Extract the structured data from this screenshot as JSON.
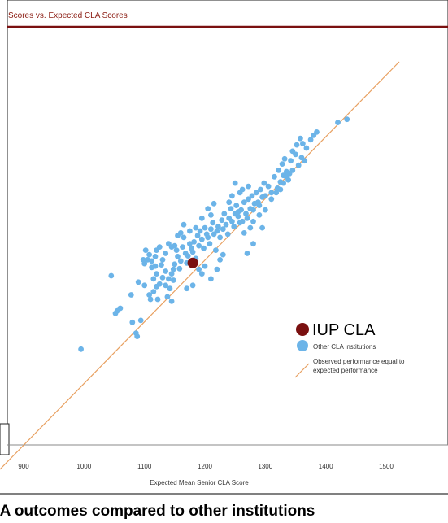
{
  "header": {
    "title": "Scores vs. Expected CLA Scores"
  },
  "chart_data": {
    "type": "scatter",
    "title": "Scores vs. Expected CLA Scores",
    "xlabel": "Expected Mean Senior CLA Score",
    "ylabel": "",
    "xlim": [
      900,
      1500
    ],
    "ylim": [
      900,
      1500
    ],
    "x_ticks": [
      "900",
      "1000",
      "1100",
      "1200",
      "1300",
      "1400",
      "1500"
    ],
    "grid": false,
    "legend_position": "bottom-right",
    "legend": {
      "highlight": "IUP CLA",
      "others": "Other CLA institutions",
      "line": "Observed performance equal to expected performance"
    },
    "colors": {
      "highlight": "#7a1010",
      "others": "#6cb4e8",
      "line": "#e8a060",
      "header_rule": "#7a1010"
    },
    "highlight_point": {
      "x": 1180,
      "y": 1185
    },
    "diagonal": {
      "from": [
        900,
        900
      ],
      "to": [
        1500,
        1500
      ]
    },
    "series": [
      {
        "name": "Other CLA institutions",
        "points": [
          [
            995,
            1050
          ],
          [
            1045,
            1165
          ],
          [
            1052,
            1106
          ],
          [
            1060,
            1114
          ],
          [
            1055,
            1110
          ],
          [
            1078,
            1135
          ],
          [
            1080,
            1092
          ],
          [
            1088,
            1070
          ],
          [
            1086,
            1075
          ],
          [
            1094,
            1095
          ],
          [
            1090,
            1155
          ],
          [
            1100,
            1184
          ],
          [
            1100,
            1150
          ],
          [
            1105,
            1190
          ],
          [
            1108,
            1135
          ],
          [
            1112,
            1178
          ],
          [
            1118,
            1180
          ],
          [
            1120,
            1148
          ],
          [
            1125,
            1152
          ],
          [
            1128,
            1182
          ],
          [
            1135,
            1172
          ],
          [
            1140,
            1160
          ],
          [
            1145,
            1168
          ],
          [
            1148,
            1175
          ],
          [
            1150,
            1183
          ],
          [
            1153,
            1205
          ],
          [
            1155,
            1195
          ],
          [
            1158,
            1176
          ],
          [
            1160,
            1188
          ],
          [
            1163,
            1210
          ],
          [
            1165,
            1225
          ],
          [
            1168,
            1200
          ],
          [
            1170,
            1185
          ],
          [
            1172,
            1196
          ],
          [
            1175,
            1215
          ],
          [
            1178,
            1208
          ],
          [
            1180,
            1202
          ],
          [
            1182,
            1218
          ],
          [
            1185,
            1192
          ],
          [
            1188,
            1228
          ],
          [
            1190,
            1212
          ],
          [
            1192,
            1235
          ],
          [
            1195,
            1222
          ],
          [
            1198,
            1208
          ],
          [
            1200,
            1240
          ],
          [
            1203,
            1230
          ],
          [
            1205,
            1225
          ],
          [
            1208,
            1215
          ],
          [
            1210,
            1238
          ],
          [
            1213,
            1248
          ],
          [
            1215,
            1230
          ],
          [
            1218,
            1205
          ],
          [
            1220,
            1235
          ],
          [
            1222,
            1242
          ],
          [
            1225,
            1225
          ],
          [
            1228,
            1252
          ],
          [
            1230,
            1238
          ],
          [
            1232,
            1262
          ],
          [
            1235,
            1245
          ],
          [
            1238,
            1230
          ],
          [
            1240,
            1255
          ],
          [
            1243,
            1270
          ],
          [
            1245,
            1250
          ],
          [
            1248,
            1242
          ],
          [
            1250,
            1262
          ],
          [
            1252,
            1275
          ],
          [
            1255,
            1258
          ],
          [
            1258,
            1248
          ],
          [
            1260,
            1268
          ],
          [
            1262,
            1250
          ],
          [
            1265,
            1280
          ],
          [
            1268,
            1262
          ],
          [
            1270,
            1255
          ],
          [
            1272,
            1285
          ],
          [
            1275,
            1270
          ],
          [
            1278,
            1290
          ],
          [
            1280,
            1268
          ],
          [
            1282,
            1278
          ],
          [
            1285,
            1295
          ],
          [
            1288,
            1280
          ],
          [
            1290,
            1275
          ],
          [
            1292,
            1300
          ],
          [
            1295,
            1288
          ],
          [
            1298,
            1310
          ],
          [
            1300,
            1290
          ],
          [
            1305,
            1305
          ],
          [
            1310,
            1295
          ],
          [
            1315,
            1320
          ],
          [
            1320,
            1302
          ],
          [
            1322,
            1330
          ],
          [
            1325,
            1312
          ],
          [
            1328,
            1340
          ],
          [
            1330,
            1322
          ],
          [
            1332,
            1348
          ],
          [
            1335,
            1328
          ],
          [
            1338,
            1315
          ],
          [
            1342,
            1345
          ],
          [
            1345,
            1330
          ],
          [
            1350,
            1355
          ],
          [
            1355,
            1338
          ],
          [
            1360,
            1350
          ],
          [
            1365,
            1345
          ],
          [
            1250,
            1310
          ],
          [
            1258,
            1295
          ],
          [
            1262,
            1300
          ],
          [
            1272,
            1305
          ],
          [
            1240,
            1280
          ],
          [
            1245,
            1290
          ],
          [
            1210,
            1260
          ],
          [
            1205,
            1270
          ],
          [
            1215,
            1278
          ],
          [
            1195,
            1255
          ],
          [
            1175,
            1235
          ],
          [
            1185,
            1240
          ],
          [
            1165,
            1245
          ],
          [
            1160,
            1232
          ],
          [
            1155,
            1228
          ],
          [
            1150,
            1212
          ],
          [
            1145,
            1210
          ],
          [
            1140,
            1215
          ],
          [
            1135,
            1200
          ],
          [
            1130,
            1190
          ],
          [
            1125,
            1210
          ],
          [
            1120,
            1205
          ],
          [
            1118,
            1195
          ],
          [
            1112,
            1188
          ],
          [
            1108,
            1198
          ],
          [
            1102,
            1205
          ],
          [
            1098,
            1190
          ],
          [
            1115,
            1160
          ],
          [
            1120,
            1168
          ],
          [
            1130,
            1162
          ],
          [
            1135,
            1150
          ],
          [
            1142,
            1145
          ],
          [
            1148,
            1158
          ],
          [
            1138,
            1132
          ],
          [
            1145,
            1125
          ],
          [
            1115,
            1140
          ],
          [
            1122,
            1128
          ],
          [
            1110,
            1128
          ],
          [
            1190,
            1175
          ],
          [
            1195,
            1168
          ],
          [
            1200,
            1180
          ],
          [
            1210,
            1160
          ],
          [
            1220,
            1175
          ],
          [
            1225,
            1190
          ],
          [
            1230,
            1198
          ],
          [
            1255,
            1265
          ],
          [
            1265,
            1232
          ],
          [
            1275,
            1240
          ],
          [
            1280,
            1250
          ],
          [
            1290,
            1260
          ],
          [
            1300,
            1268
          ],
          [
            1310,
            1285
          ],
          [
            1318,
            1295
          ],
          [
            1325,
            1300
          ],
          [
            1330,
            1310
          ],
          [
            1335,
            1320
          ],
          [
            1340,
            1325
          ],
          [
            1345,
            1360
          ],
          [
            1352,
            1370
          ],
          [
            1358,
            1380
          ],
          [
            1362,
            1372
          ],
          [
            1368,
            1365
          ],
          [
            1375,
            1378
          ],
          [
            1380,
            1385
          ],
          [
            1385,
            1390
          ],
          [
            1420,
            1405
          ],
          [
            1435,
            1410
          ],
          [
            1295,
            1240
          ],
          [
            1280,
            1215
          ],
          [
            1270,
            1200
          ],
          [
            1180,
            1150
          ],
          [
            1170,
            1145
          ]
        ]
      }
    ]
  },
  "caption": {
    "text": "LA outcomes compared to other institutions"
  }
}
